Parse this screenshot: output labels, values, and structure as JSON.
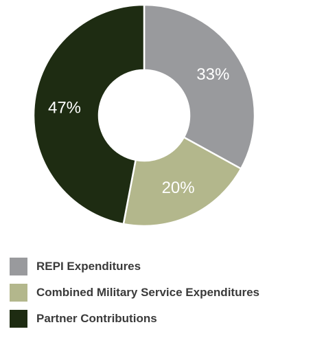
{
  "chart_data": {
    "type": "pie",
    "donut": true,
    "legend_position": "bottom-left",
    "slices": [
      {
        "name": "REPI Expenditures",
        "value": 33,
        "label": "33%",
        "color": "#999a9d"
      },
      {
        "name": "Combined Military Service Expenditures",
        "value": 20,
        "label": "20%",
        "color": "#b3b78c"
      },
      {
        "name": "Partner Contributions",
        "value": 47,
        "label": "47%",
        "color": "#1e2c12"
      }
    ]
  }
}
